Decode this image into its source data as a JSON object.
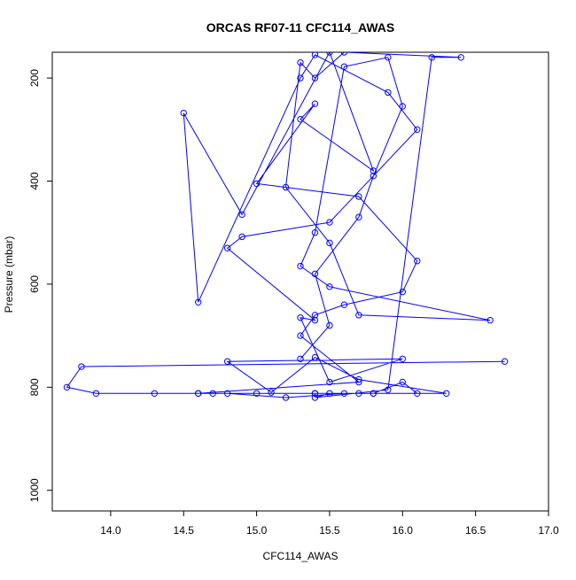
{
  "chart_data": {
    "type": "scatter",
    "title": "ORCAS RF07-11 CFC114_AWAS",
    "xlabel": "CFC114_AWAS",
    "ylabel": "Pressure (mbar)",
    "xlim": [
      13.6,
      17.0
    ],
    "ylim": [
      1040,
      150
    ],
    "y_reversed": true,
    "x_ticks": [
      14.0,
      14.5,
      15.0,
      15.5,
      16.0,
      16.5,
      17.0
    ],
    "x_tick_labels": [
      "14.0",
      "14.5",
      "15.0",
      "15.5",
      "16.0",
      "16.5",
      "17.0"
    ],
    "y_ticks": [
      200,
      400,
      600,
      800,
      1000
    ],
    "y_tick_labels": [
      "200",
      "400",
      "600",
      "800",
      "1000"
    ],
    "grid": false,
    "legend": "none",
    "series_color": "#0000ff",
    "series": [
      {
        "x": [
          16.7,
          13.8,
          13.7,
          13.9,
          14.3,
          14.6,
          15.0,
          15.4,
          15.8,
          16.3,
          15.7,
          15.4,
          15.1,
          14.8,
          16.0,
          15.5,
          15.3,
          15.4,
          14.8,
          14.9,
          15.5,
          16.1,
          15.9,
          15.4,
          15.3,
          14.6,
          14.5,
          14.9,
          15.5,
          15.8,
          15.3,
          15.4,
          15.0,
          15.7,
          16.1,
          16.0,
          15.6,
          15.4,
          15.3,
          15.7,
          14.6,
          14.7,
          14.8,
          15.2,
          15.6,
          15.4,
          15.7,
          16.1,
          16.0,
          15.8,
          15.5,
          15.4,
          15.9,
          16.2,
          16.4,
          15.6,
          15.4,
          15.3,
          15.2,
          15.5,
          15.7,
          16.6,
          15.5,
          15.3,
          15.4,
          15.6,
          15.9,
          16.0,
          15.8,
          15.7,
          15.4,
          15.5,
          15.3
        ],
        "y": [
          750,
          760,
          800,
          812,
          812,
          812,
          812,
          812,
          812,
          812,
          785,
          742,
          810,
          750,
          745,
          790,
          665,
          670,
          530,
          508,
          480,
          300,
          228,
          155,
          200,
          635,
          268,
          465,
          150,
          380,
          280,
          250,
          405,
          430,
          555,
          615,
          640,
          660,
          700,
          790,
          812,
          812,
          812,
          820,
          812,
          812,
          812,
          812,
          790,
          812,
          812,
          820,
          805,
          160,
          160,
          150,
          200,
          170,
          412,
          520,
          660,
          670,
          605,
          565,
          500,
          178,
          160,
          255,
          390,
          470,
          580,
          680,
          745
        ]
      }
    ]
  }
}
